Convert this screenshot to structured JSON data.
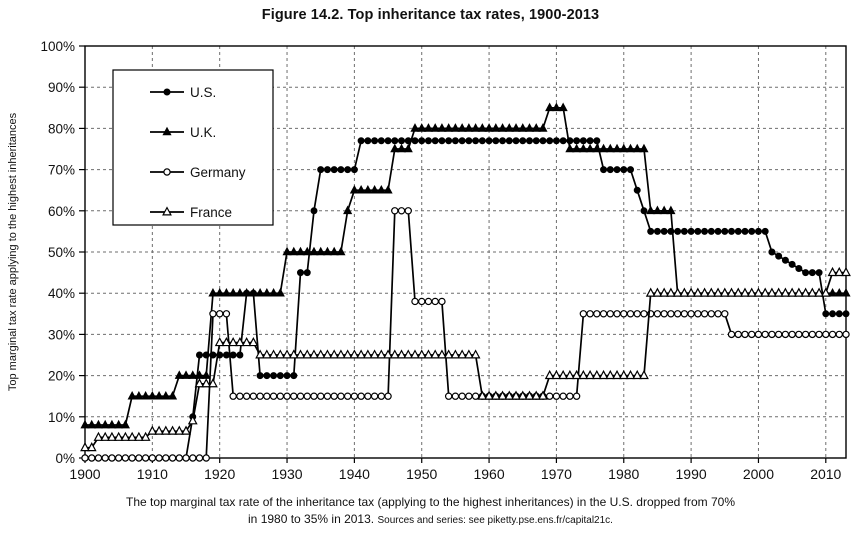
{
  "title": "Figure 14.2. Top inheritance tax rates, 1900-2013",
  "caption": {
    "line1": "The top marginal tax rate of the inheritance tax (applying to the highest inheritances) in the U.S. dropped from 70%",
    "line2": "in 1980 to 35% in 2013.",
    "sources": "Sources and series: see piketty.pse.ens.fr/capital21c."
  },
  "chart_data": {
    "type": "line",
    "title": "Figure 14.2. Top inheritance tax rates, 1900-2013",
    "xlabel": "",
    "ylabel": "Top marginal tax rate applying to the highest inheritances",
    "x_range": [
      1900,
      2013
    ],
    "y_range": [
      0,
      100
    ],
    "x_ticks": [
      1900,
      1910,
      1920,
      1930,
      1940,
      1950,
      1960,
      1970,
      1980,
      1990,
      2000,
      2010
    ],
    "y_ticks": [
      "0%",
      "10%",
      "20%",
      "30%",
      "40%",
      "50%",
      "60%",
      "70%",
      "80%",
      "90%",
      "100%"
    ],
    "grid": "dashed",
    "legend_position": "top-left",
    "line_color": "#000000",
    "series": [
      {
        "name": "U.S.",
        "marker": "filled-circle",
        "color": "#000000",
        "segments": [
          [
            1900,
            1915,
            0
          ],
          [
            1916,
            1916,
            10
          ],
          [
            1917,
            1923,
            25
          ],
          [
            1924,
            1925,
            40
          ],
          [
            1926,
            1931,
            20
          ],
          [
            1932,
            1933,
            45
          ],
          [
            1934,
            1934,
            60
          ],
          [
            1935,
            1940,
            70
          ],
          [
            1941,
            1976,
            77
          ],
          [
            1977,
            1981,
            70
          ],
          [
            1982,
            1982,
            65
          ],
          [
            1983,
            1983,
            60
          ],
          [
            1984,
            2001,
            55
          ],
          [
            2002,
            2002,
            50
          ],
          [
            2003,
            2003,
            49
          ],
          [
            2004,
            2004,
            48
          ],
          [
            2005,
            2005,
            47
          ],
          [
            2006,
            2006,
            46
          ],
          [
            2007,
            2009,
            45
          ],
          [
            2010,
            2013,
            35
          ]
        ]
      },
      {
        "name": "U.K.",
        "marker": "filled-triangle",
        "color": "#000000",
        "segments": [
          [
            1900,
            1906,
            8
          ],
          [
            1907,
            1913,
            15
          ],
          [
            1914,
            1918,
            20
          ],
          [
            1919,
            1929,
            40
          ],
          [
            1930,
            1938,
            50
          ],
          [
            1939,
            1939,
            60
          ],
          [
            1940,
            1945,
            65
          ],
          [
            1946,
            1948,
            75
          ],
          [
            1949,
            1968,
            80
          ],
          [
            1969,
            1971,
            85
          ],
          [
            1972,
            1983,
            75
          ],
          [
            1984,
            1987,
            60
          ],
          [
            1988,
            2013,
            40
          ]
        ]
      },
      {
        "name": "Germany",
        "marker": "open-circle",
        "color": "#000000",
        "segments": [
          [
            1900,
            1918,
            0
          ],
          [
            1919,
            1921,
            35
          ],
          [
            1922,
            1945,
            15
          ],
          [
            1946,
            1948,
            60
          ],
          [
            1949,
            1953,
            38
          ],
          [
            1954,
            1973,
            15
          ],
          [
            1974,
            1995,
            35
          ],
          [
            1996,
            2013,
            30
          ]
        ]
      },
      {
        "name": "France",
        "marker": "open-triangle",
        "color": "#000000",
        "segments": [
          [
            1900,
            1901,
            2.5
          ],
          [
            1902,
            1909,
            5
          ],
          [
            1910,
            1915,
            6.5
          ],
          [
            1916,
            1916,
            9
          ],
          [
            1917,
            1919,
            18
          ],
          [
            1920,
            1925,
            28
          ],
          [
            1926,
            1958,
            25
          ],
          [
            1959,
            1968,
            15
          ],
          [
            1969,
            1983,
            20
          ],
          [
            1984,
            2010,
            40
          ],
          [
            2011,
            2013,
            45
          ]
        ]
      }
    ]
  }
}
